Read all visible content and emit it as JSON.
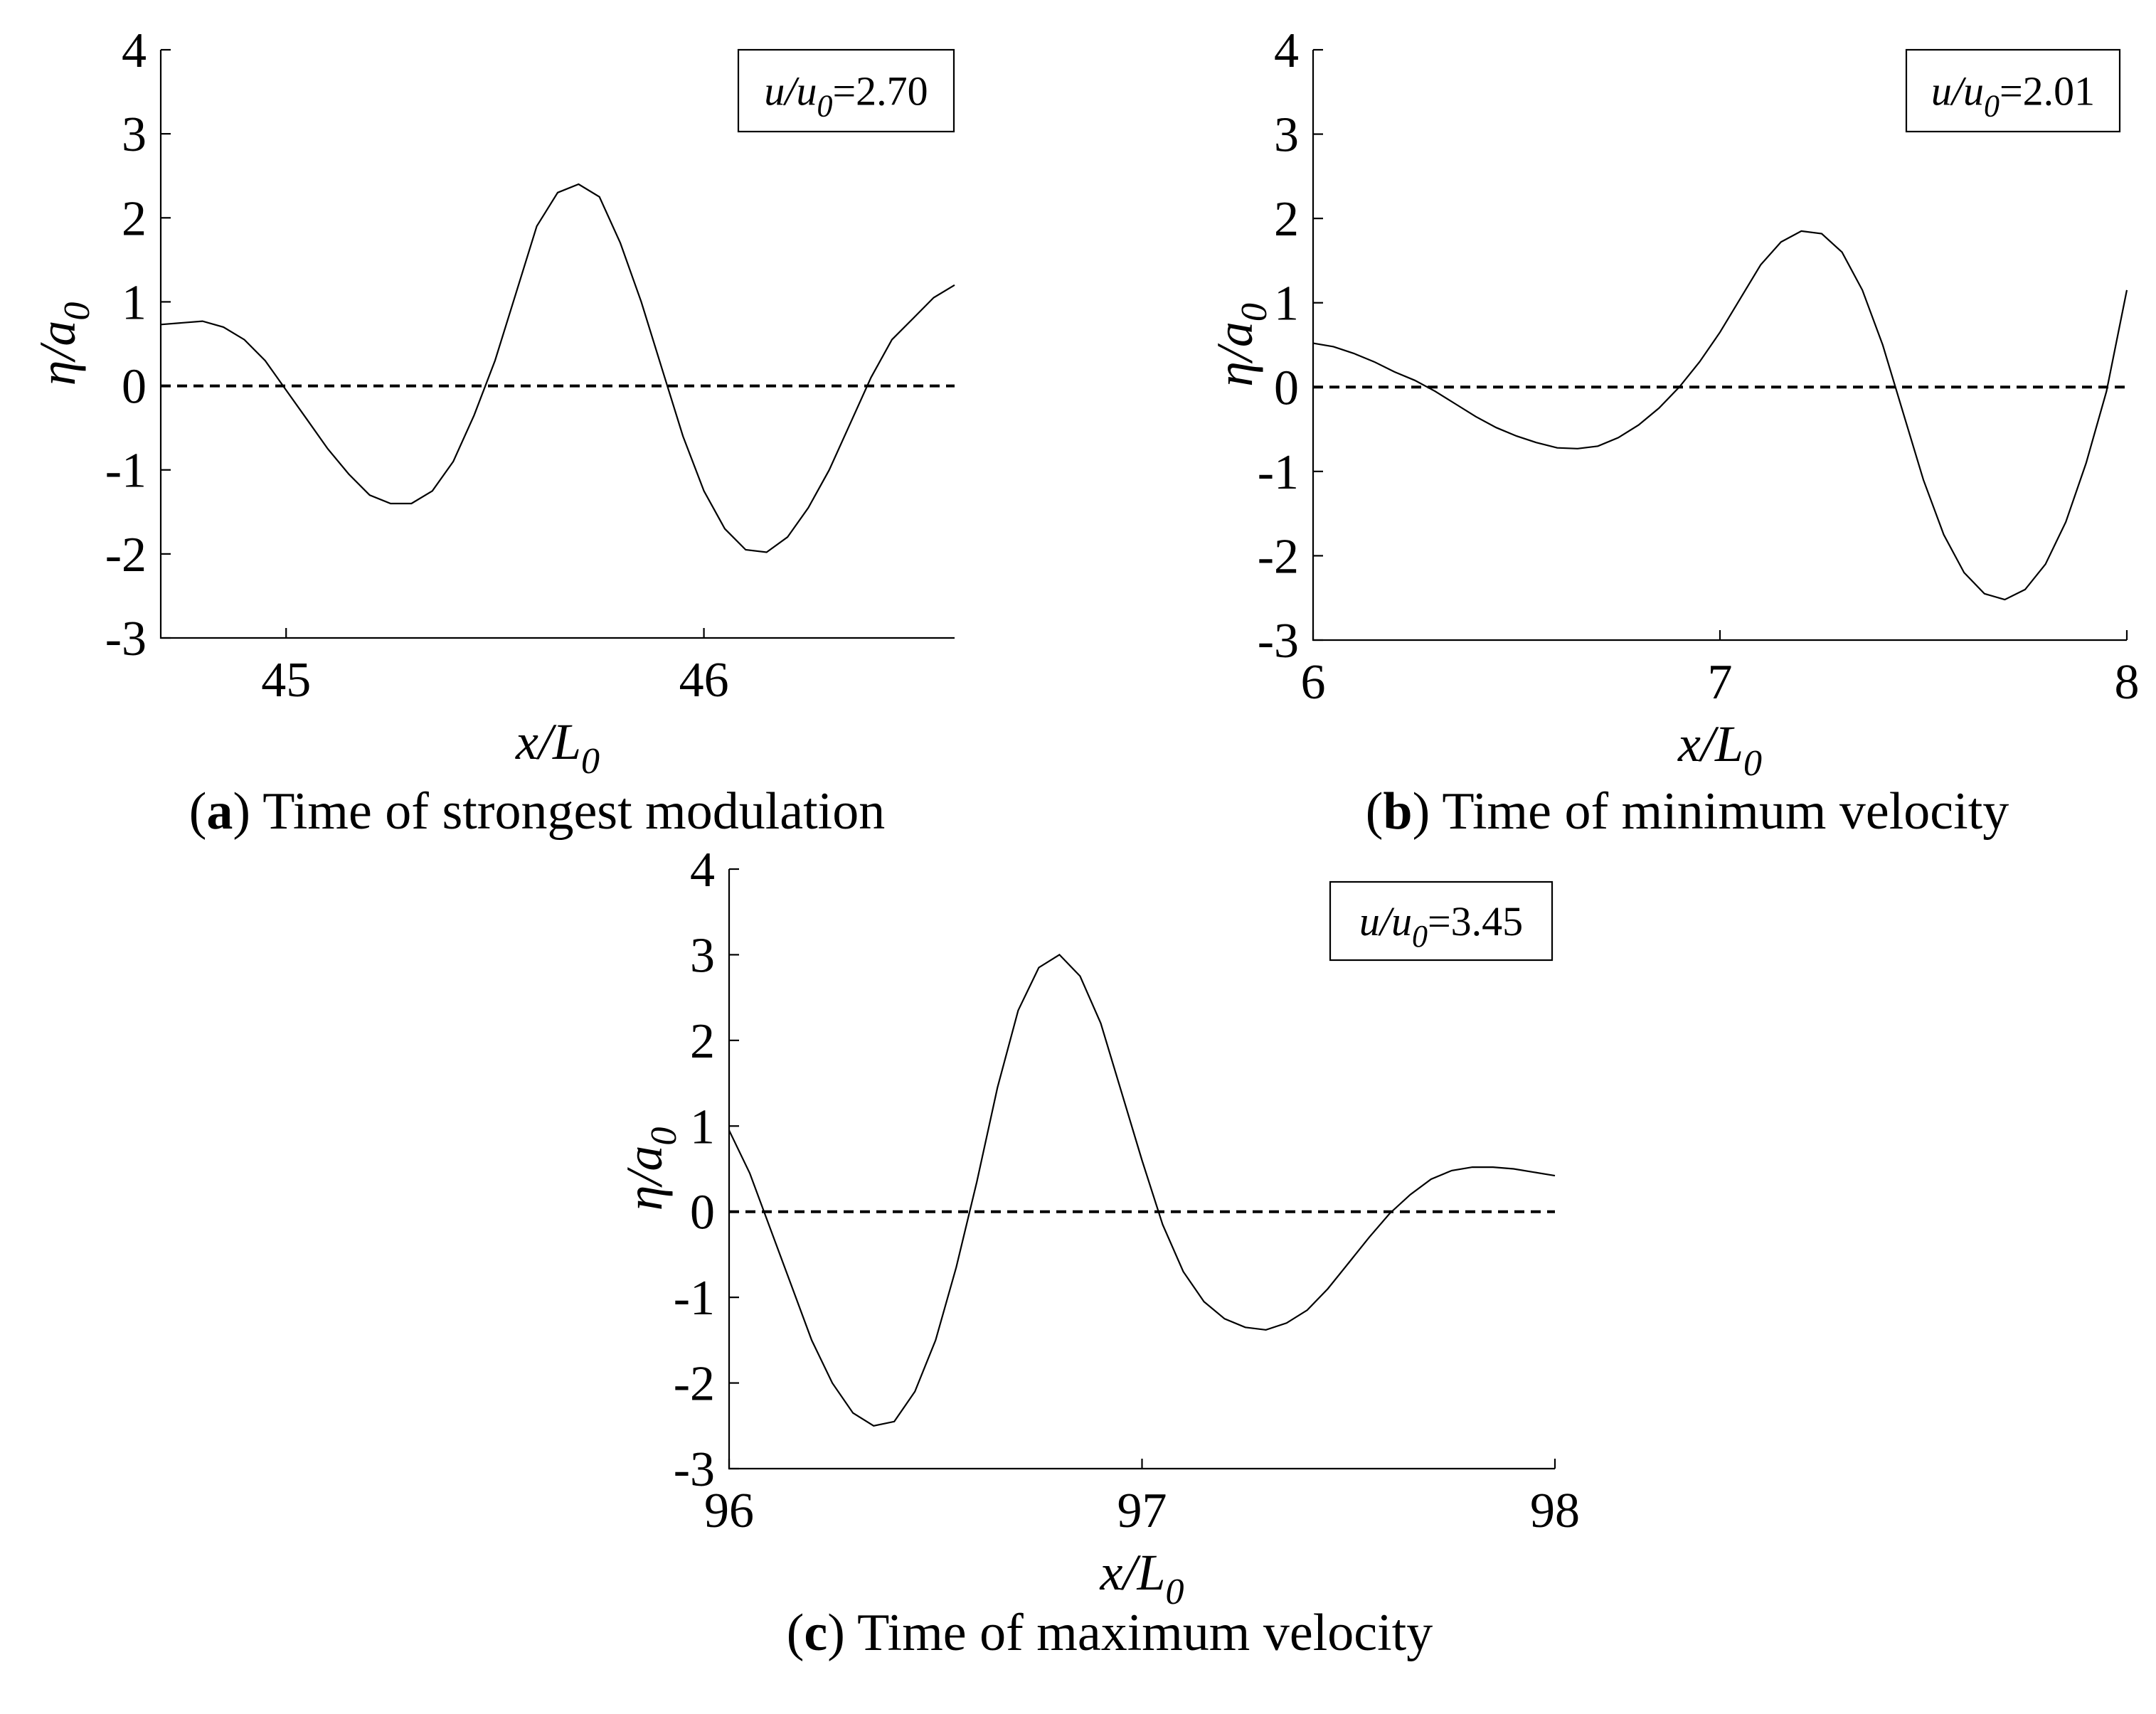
{
  "chart_data": [
    {
      "id": "a",
      "type": "line",
      "caption_letter": "a",
      "caption_text": "Time of strongest modulation",
      "xlabel": "x/L",
      "xlabel_sub": "0",
      "ylabel": "η/a",
      "ylabel_sub": "0",
      "xlim": [
        44.7,
        46.6
      ],
      "ylim": [
        -3,
        4
      ],
      "xticks": [
        45,
        46
      ],
      "yticks": [
        -3,
        -2,
        -1,
        0,
        1,
        2,
        3,
        4
      ],
      "annotation": {
        "var": "u/u",
        "sub": "0",
        "value": "=2.70"
      },
      "series": [
        {
          "name": "eta",
          "style": "solid",
          "x": [
            44.7,
            44.8,
            44.85,
            44.9,
            44.95,
            45.0,
            45.05,
            45.1,
            45.15,
            45.2,
            45.25,
            45.3,
            45.35,
            45.4,
            45.45,
            45.5,
            45.55,
            45.6,
            45.65,
            45.7,
            45.75,
            45.8,
            45.85,
            45.9,
            45.95,
            46.0,
            46.05,
            46.1,
            46.15,
            46.2,
            46.25,
            46.3,
            46.35,
            46.4,
            46.45,
            46.5,
            46.55,
            46.6
          ],
          "y": [
            0.73,
            0.77,
            0.7,
            0.55,
            0.3,
            -0.05,
            -0.4,
            -0.75,
            -1.05,
            -1.3,
            -1.4,
            -1.4,
            -1.25,
            -0.9,
            -0.35,
            0.3,
            1.1,
            1.9,
            2.3,
            2.4,
            2.25,
            1.7,
            1.0,
            0.2,
            -0.6,
            -1.25,
            -1.7,
            -1.95,
            -1.98,
            -1.8,
            -1.45,
            -1.0,
            -0.45,
            0.1,
            0.55,
            0.8,
            1.05,
            1.2
          ]
        },
        {
          "name": "zero",
          "style": "dashed",
          "x": [
            44.7,
            46.6
          ],
          "y": [
            0,
            0
          ]
        }
      ]
    },
    {
      "id": "b",
      "type": "line",
      "caption_letter": "b",
      "caption_text": "Time of minimum velocity",
      "xlabel": "x/L",
      "xlabel_sub": "0",
      "ylabel": "η/a",
      "ylabel_sub": "0",
      "xlim": [
        6,
        8
      ],
      "ylim": [
        -3,
        4
      ],
      "xticks": [
        6,
        7,
        8
      ],
      "yticks": [
        -3,
        -2,
        -1,
        0,
        1,
        2,
        3,
        4
      ],
      "annotation": {
        "var": "u/u",
        "sub": "0",
        "value": "=2.01"
      },
      "series": [
        {
          "name": "eta",
          "style": "solid",
          "x": [
            6.0,
            6.05,
            6.1,
            6.15,
            6.2,
            6.25,
            6.3,
            6.35,
            6.4,
            6.45,
            6.5,
            6.55,
            6.6,
            6.65,
            6.7,
            6.75,
            6.8,
            6.85,
            6.9,
            6.95,
            7.0,
            7.05,
            7.1,
            7.15,
            7.2,
            7.25,
            7.3,
            7.35,
            7.4,
            7.45,
            7.5,
            7.55,
            7.6,
            7.65,
            7.7,
            7.75,
            7.8,
            7.85,
            7.9,
            7.95,
            8.0
          ],
          "y": [
            0.52,
            0.48,
            0.4,
            0.3,
            0.18,
            0.08,
            -0.05,
            -0.2,
            -0.35,
            -0.48,
            -0.58,
            -0.66,
            -0.72,
            -0.73,
            -0.7,
            -0.6,
            -0.45,
            -0.25,
            0.0,
            0.3,
            0.65,
            1.05,
            1.45,
            1.72,
            1.85,
            1.82,
            1.6,
            1.15,
            0.5,
            -0.3,
            -1.1,
            -1.75,
            -2.2,
            -2.45,
            -2.52,
            -2.4,
            -2.1,
            -1.6,
            -0.9,
            -0.05,
            1.15
          ]
        },
        {
          "name": "zero",
          "style": "dashed",
          "x": [
            6,
            8
          ],
          "y": [
            0,
            0
          ]
        }
      ]
    },
    {
      "id": "c",
      "type": "line",
      "caption_letter": "c",
      "caption_text": "Time of maximum velocity",
      "xlabel": "x/L",
      "xlabel_sub": "0",
      "ylabel": "η/a",
      "ylabel_sub": "0",
      "xlim": [
        96,
        98
      ],
      "ylim": [
        -3,
        4
      ],
      "xticks": [
        96,
        97,
        98
      ],
      "yticks": [
        -3,
        -2,
        -1,
        0,
        1,
        2,
        3,
        4
      ],
      "annotation": {
        "var": "u/u",
        "sub": "0",
        "value": "=3.45"
      },
      "series": [
        {
          "name": "eta",
          "style": "solid",
          "x": [
            96.0,
            96.05,
            96.1,
            96.15,
            96.2,
            96.25,
            96.3,
            96.35,
            96.4,
            96.45,
            96.5,
            96.55,
            96.6,
            96.65,
            96.7,
            96.75,
            96.8,
            96.85,
            96.9,
            96.95,
            97.0,
            97.05,
            97.1,
            97.15,
            97.2,
            97.25,
            97.3,
            97.35,
            97.4,
            97.45,
            97.5,
            97.55,
            97.6,
            97.65,
            97.7,
            97.75,
            97.8,
            97.85,
            97.9,
            97.95,
            98.0
          ],
          "y": [
            0.95,
            0.45,
            -0.2,
            -0.85,
            -1.5,
            -2.0,
            -2.35,
            -2.5,
            -2.45,
            -2.1,
            -1.5,
            -0.65,
            0.35,
            1.45,
            2.35,
            2.85,
            3.0,
            2.75,
            2.2,
            1.4,
            0.6,
            -0.15,
            -0.7,
            -1.05,
            -1.25,
            -1.35,
            -1.38,
            -1.3,
            -1.15,
            -0.9,
            -0.6,
            -0.3,
            -0.02,
            0.2,
            0.38,
            0.48,
            0.52,
            0.52,
            0.5,
            0.46,
            0.42
          ]
        },
        {
          "name": "zero",
          "style": "dashed",
          "x": [
            96,
            98
          ],
          "y": [
            0,
            0
          ]
        }
      ]
    }
  ]
}
